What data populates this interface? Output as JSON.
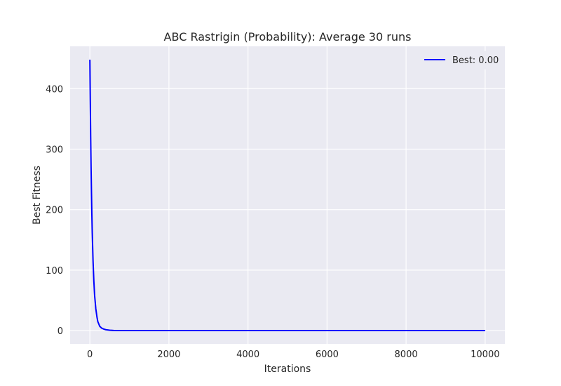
{
  "chart_data": {
    "type": "line",
    "title": "ABC Rastrigin (Probability): Average 30 runs",
    "xlabel": "Iterations",
    "ylabel": "Best Fitness",
    "xlim": [
      -500,
      10500
    ],
    "ylim": [
      -22,
      470
    ],
    "xticks": [
      0,
      2000,
      4000,
      6000,
      8000,
      10000
    ],
    "yticks": [
      0,
      100,
      200,
      300,
      400
    ],
    "grid": true,
    "legend": {
      "placement": "top-right"
    },
    "series": [
      {
        "name": "Best: 0.00",
        "color": "#0000ff",
        "x": [
          0,
          10,
          20,
          30,
          40,
          50,
          60,
          80,
          100,
          120,
          150,
          180,
          200,
          250,
          300,
          350,
          400,
          500,
          600,
          700,
          800,
          1000,
          2000,
          4000,
          6000,
          8000,
          10000
        ],
        "y": [
          448,
          380,
          320,
          270,
          228,
          192,
          162,
          115,
          82,
          58,
          36,
          22,
          15,
          7,
          4,
          2.5,
          1.5,
          0.6,
          0.25,
          0.1,
          0.05,
          0.02,
          0,
          0,
          0,
          0,
          0
        ]
      }
    ]
  },
  "colors": {
    "plot_background": "#eaeaf2",
    "grid": "#ffffff",
    "text": "#262626"
  }
}
